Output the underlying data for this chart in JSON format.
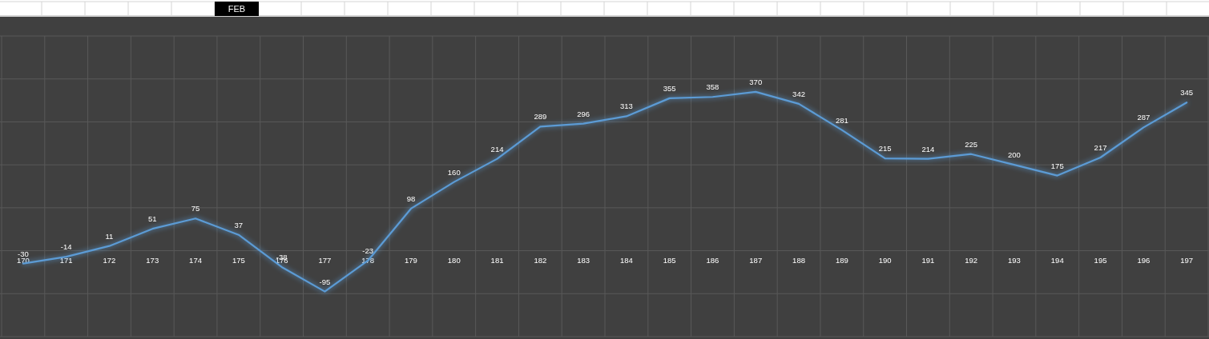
{
  "chart_data": {
    "type": "line",
    "categories": [
      "170",
      "171",
      "172",
      "173",
      "174",
      "175",
      "176",
      "177",
      "178",
      "179",
      "180",
      "181",
      "182",
      "183",
      "184",
      "185",
      "186",
      "187",
      "188",
      "189",
      "190",
      "191",
      "192",
      "193",
      "194",
      "195",
      "196",
      "197"
    ],
    "series": [
      {
        "color": "#5b9bd5",
        "values": [
          -30,
          -14,
          11,
          51,
          75,
          37,
          -38,
          -95,
          -23,
          98,
          160,
          214,
          289,
          296,
          313,
          355,
          358,
          370,
          342,
          281,
          215,
          214,
          225,
          200,
          175,
          217,
          287,
          345
        ]
      }
    ],
    "ylim": [
      -200,
      500
    ],
    "yticks": [
      {
        "value": -200,
        "label": null
      },
      {
        "value": -100,
        "label": null
      },
      {
        "value": 0,
        "label": null
      },
      {
        "value": 100,
        "label": null
      },
      {
        "value": 200,
        "label": null
      },
      {
        "value": 300,
        "label": null
      },
      {
        "value": 400,
        "label": null
      },
      {
        "value": 500,
        "label": null
      }
    ],
    "tick_labels": "x",
    "grid": true,
    "data_labels": true,
    "marker": "none",
    "annotations": [
      "FEB"
    ]
  }
}
